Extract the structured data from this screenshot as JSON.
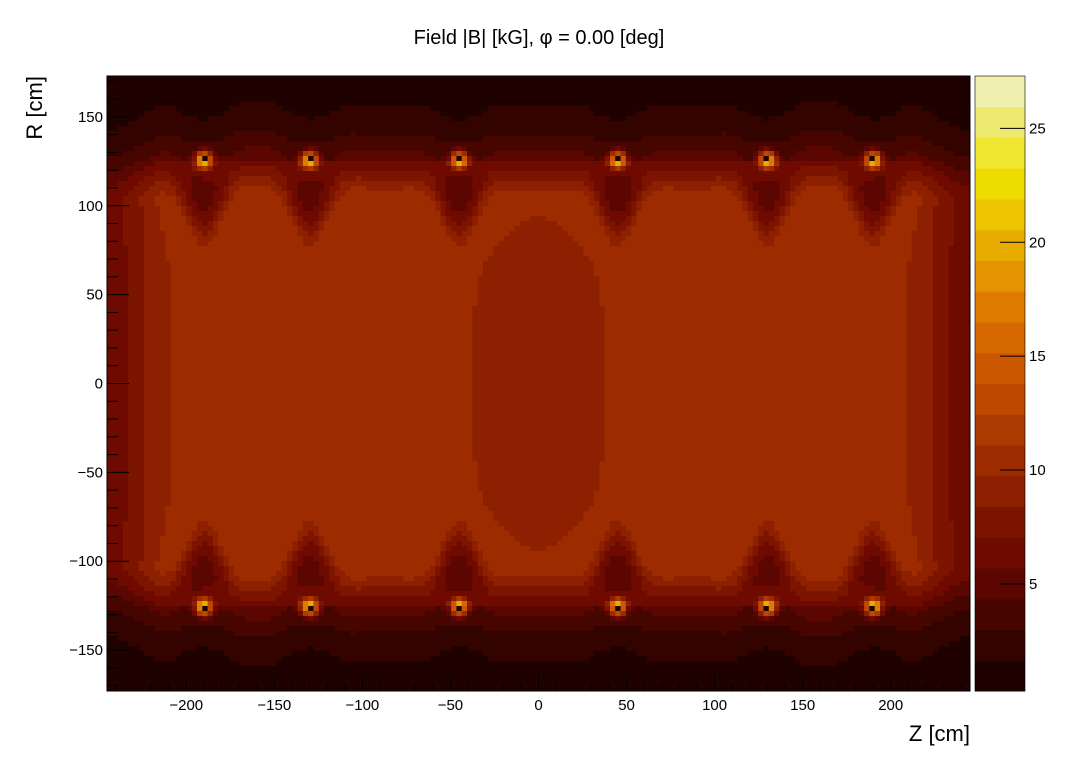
{
  "chart_data": {
    "type": "heatmap",
    "title": "Field |B| [kG],  φ = 0.00   [deg]",
    "xlabel": "Z  [cm]",
    "ylabel": "R  [cm]",
    "xlim": [
      -245,
      245
    ],
    "ylim": [
      -173,
      173
    ],
    "x_ticks": [
      -200,
      -150,
      -100,
      -50,
      0,
      50,
      100,
      150,
      200
    ],
    "x_tick_labels": [
      "−200",
      "−150",
      "−100",
      "−50",
      "0",
      "50",
      "100",
      "150",
      "200"
    ],
    "y_ticks": [
      -150,
      -100,
      -50,
      0,
      50,
      100,
      150
    ],
    "y_tick_labels": [
      "−150",
      "−100",
      "−50",
      "0",
      "50",
      "100",
      "150"
    ],
    "colorbar": {
      "zlim": [
        0.3,
        27.3
      ],
      "levels": 20,
      "ticks": [
        5,
        10,
        15,
        20,
        25
      ],
      "tick_labels": [
        "5",
        "10",
        "15",
        "20",
        "25"
      ],
      "colors": [
        "#0d0000",
        "#1f0200",
        "#330300",
        "#470500",
        "#5b0600",
        "#6e0a00",
        "#7c1400",
        "#8c2000",
        "#9c2c00",
        "#ac3a00",
        "#bd4800",
        "#cb5800",
        "#d66800",
        "#de7c00",
        "#e49400",
        "#e8ac00",
        "#ecc400",
        "#eedc00",
        "#eee630",
        "#eeea70",
        "#f0efb0",
        "#f3f3e3"
      ]
    },
    "coil_z_positions": [
      -190,
      -130,
      -45,
      45,
      130,
      190
    ],
    "coil_r_positions": [
      126,
      -126
    ],
    "core_field_kG": 9.8,
    "center_field_kG": 8.9,
    "grid": false,
    "legend": "none"
  }
}
